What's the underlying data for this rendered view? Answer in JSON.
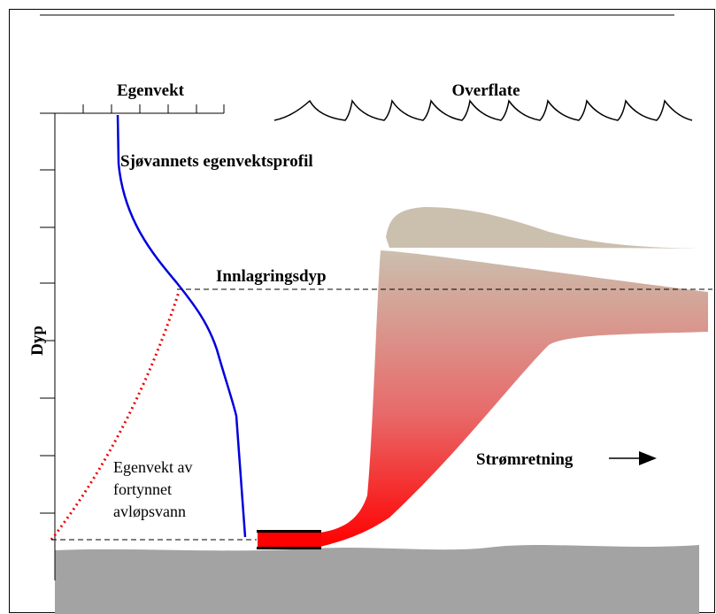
{
  "labels": {
    "density_axis": "Egenvekt",
    "surface": "Overflate",
    "seawater_profile": "Sjøvannets egenvektsprofil",
    "trapping_depth": "Innlagringsdyp",
    "depth_axis": "Dyp",
    "diluted_density": [
      "Egenvekt av",
      "fortynnet",
      "avløpsvann"
    ],
    "flow_direction": "Strømretning"
  }
}
